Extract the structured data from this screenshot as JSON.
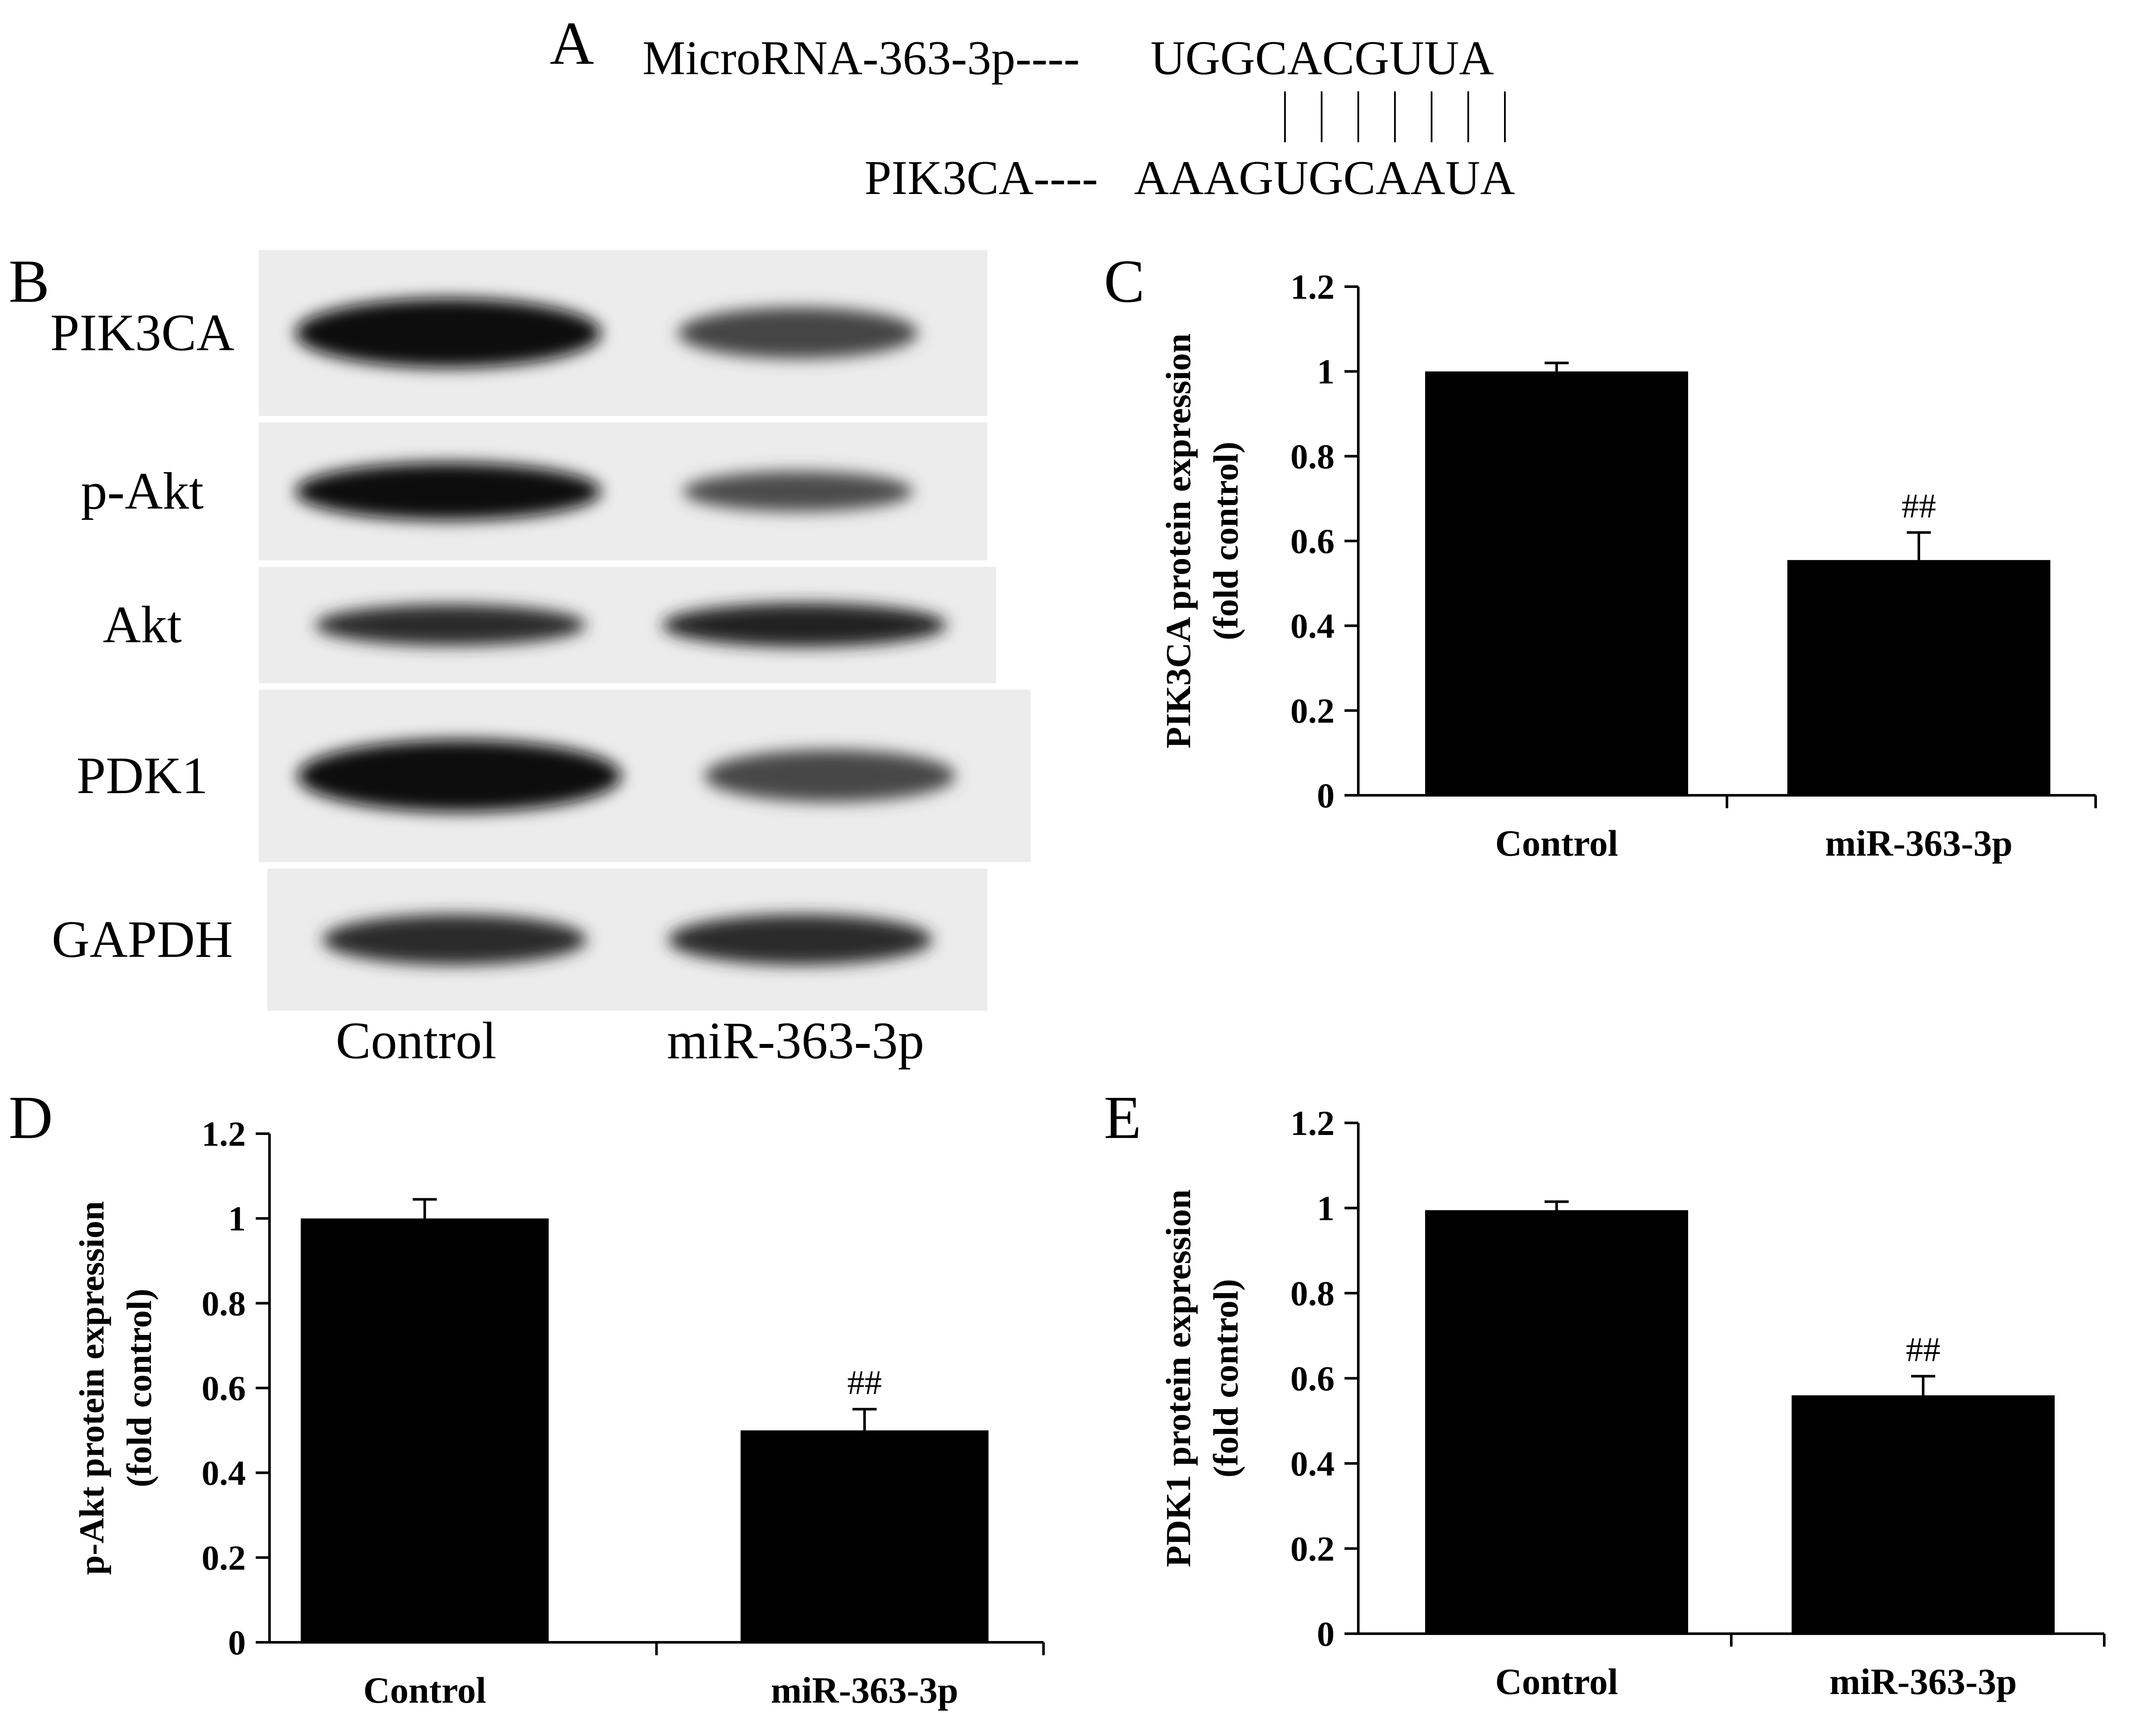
{
  "panels": {
    "A": "A",
    "B": "B",
    "C": "C",
    "D": "D",
    "E": "E"
  },
  "sequence": {
    "mirna_label": "MicroRNA-363-3p----",
    "mirna_seq": "UGGCACGUUA",
    "target_label": "PIK3CA----",
    "target_seq": "AAAGUGCAAUA"
  },
  "blot": {
    "rows": [
      {
        "label": "PIK3CA",
        "control": 1.0,
        "treated": 0.52
      },
      {
        "label": "p-Akt",
        "control": 1.0,
        "treated": 0.45
      },
      {
        "label": "Akt",
        "control": 0.72,
        "treated": 0.82
      },
      {
        "label": "PDK1",
        "control": 1.0,
        "treated": 0.5
      },
      {
        "label": "GAPDH",
        "control": 0.72,
        "treated": 0.72
      }
    ],
    "lanes": [
      "Control",
      "miR-363-3p"
    ]
  },
  "chart_data": [
    {
      "type": "bar",
      "panel": "C",
      "categories": [
        "Control",
        "miR-363-3p"
      ],
      "values": [
        1.0,
        0.555
      ],
      "errors": [
        0.02,
        0.065
      ],
      "annotations": [
        "",
        "##"
      ],
      "ylabel": [
        "PIK3CA  protein expression",
        "(fold control)"
      ],
      "ylim": [
        0,
        1.2
      ],
      "yticks": [
        "0",
        "0.2",
        "0.4",
        "0.6",
        "0.8",
        "1",
        "1.2"
      ]
    },
    {
      "type": "bar",
      "panel": "D",
      "categories": [
        "Control",
        "miR-363-3p"
      ],
      "values": [
        1.0,
        0.5
      ],
      "errors": [
        0.045,
        0.05
      ],
      "annotations": [
        "",
        "##"
      ],
      "ylabel": [
        "p-Akt  protein expression",
        "(fold control)"
      ],
      "ylim": [
        0,
        1.2
      ],
      "yticks": [
        "0",
        "0.2",
        "0.4",
        "0.6",
        "0.8",
        "1",
        "1.2"
      ]
    },
    {
      "type": "bar",
      "panel": "E",
      "categories": [
        "Control",
        "miR-363-3p"
      ],
      "values": [
        0.995,
        0.56
      ],
      "errors": [
        0.02,
        0.045
      ],
      "annotations": [
        "",
        "##"
      ],
      "ylabel": [
        "PDK1 protein expression",
        "(fold control)"
      ],
      "ylim": [
        0,
        1.2
      ],
      "yticks": [
        "0",
        "0.2",
        "0.4",
        "0.6",
        "0.8",
        "1",
        "1.2"
      ]
    }
  ]
}
